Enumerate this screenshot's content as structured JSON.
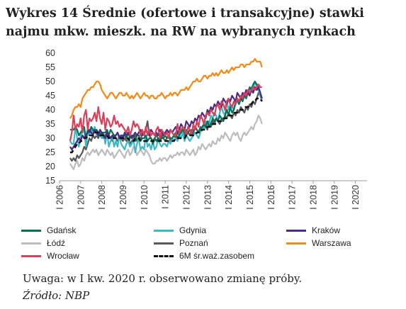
{
  "figure": {
    "title_line1": "Wykres 14 Średnie (ofertowe i transakcyjne) stawki",
    "title_line2": "najmu mkw. mieszk. na RW na wybranych rynkach",
    "note": "Uwaga: w I kw. 2020 r. obserwowano zmianę próby.",
    "source": "Źródło: NBP"
  },
  "chart_data": {
    "type": "line",
    "title": "Wykres 14 Średnie (ofertowe i transakcyjne) stawki najmu mkw. mieszk. na RW na wybranych rynkach",
    "xlabel": "",
    "ylabel": "",
    "ylim": [
      15,
      60
    ],
    "yticks": [
      15,
      20,
      25,
      30,
      35,
      40,
      45,
      50,
      55,
      60
    ],
    "x_tick_labels": [
      "I 2006",
      "I 2007",
      "I 2008",
      "I 2009",
      "I 2010",
      "I 2011",
      "I 2012",
      "I 2013",
      "I 2014",
      "I 2015",
      "I 2016",
      "I 2017",
      "I 2018",
      "I 2019",
      "I 2020"
    ],
    "x_start": 2006.5,
    "x_step": 0.0833,
    "grid": false,
    "legend_position": "bottom",
    "series": [
      {
        "name": "Gdańsk",
        "color": "#0a6e58",
        "dash": false,
        "values": [
          33,
          33,
          33,
          34,
          33,
          31,
          32,
          33,
          34,
          30,
          33,
          32,
          34,
          33,
          32,
          33,
          32,
          31,
          32,
          32,
          32,
          33,
          31,
          33,
          32,
          31,
          31,
          32,
          30,
          31,
          31,
          31,
          30,
          32,
          30,
          31,
          31,
          29,
          31,
          31,
          29,
          30,
          30,
          31,
          29,
          30,
          30,
          28,
          30,
          29,
          30,
          29,
          30,
          30,
          31,
          30,
          31,
          30,
          30,
          31,
          32,
          30,
          31,
          32,
          33,
          32,
          31,
          32,
          33,
          31,
          32,
          34,
          33,
          32,
          33,
          34,
          35,
          34,
          36,
          34,
          35,
          37,
          36,
          37,
          36,
          38,
          37,
          36,
          38,
          40,
          38,
          41,
          39,
          40,
          43,
          44,
          42,
          44,
          43,
          45,
          44,
          46,
          48,
          47,
          49,
          50,
          49,
          48,
          46,
          44
        ]
      },
      {
        "name": "Gdynia",
        "color": "#3fb8c6",
        "dash": false,
        "values": [
          29,
          28,
          28,
          34,
          30,
          27,
          31,
          32,
          33,
          27,
          32,
          31,
          33,
          32,
          34,
          31,
          32,
          31,
          30,
          32,
          28,
          32,
          27,
          29,
          31,
          27,
          29,
          27,
          31,
          28,
          27,
          26,
          28,
          29,
          27,
          28,
          30,
          25,
          28,
          30,
          26,
          27,
          26,
          31,
          27,
          28,
          26,
          29,
          26,
          27,
          30,
          28,
          27,
          28,
          28,
          27,
          29,
          28,
          30,
          29,
          30,
          29,
          31,
          30,
          32,
          29,
          31,
          30,
          29,
          30,
          31,
          32,
          31,
          30,
          32,
          34,
          33,
          36,
          34,
          35,
          38,
          37,
          39,
          38,
          36,
          39,
          41,
          39,
          38,
          43,
          40,
          42,
          41,
          40,
          42,
          43,
          42,
          44,
          43,
          46,
          45,
          47,
          46,
          48,
          47,
          50,
          48,
          47,
          45,
          43
        ]
      },
      {
        "name": "Kraków",
        "color": "#4b2c80",
        "dash": false,
        "values": [
          27,
          26,
          27,
          28,
          29,
          30,
          29,
          31,
          30,
          31,
          32,
          33,
          32,
          31,
          33,
          32,
          31,
          33,
          32,
          31,
          30,
          32,
          31,
          30,
          31,
          30,
          31,
          32,
          30,
          31,
          30,
          32,
          31,
          32,
          31,
          30,
          31,
          32,
          31,
          32,
          33,
          31,
          32,
          33,
          32,
          31,
          33,
          32,
          31,
          32,
          31,
          33,
          32,
          31,
          32,
          33,
          32,
          33,
          32,
          33,
          34,
          32,
          33,
          35,
          34,
          33,
          36,
          35,
          34,
          36,
          35,
          37,
          36,
          38,
          37,
          39,
          38,
          37,
          40,
          39,
          41,
          40,
          42,
          41,
          43,
          42,
          41,
          44,
          43,
          42,
          44,
          43,
          45,
          44,
          43,
          46,
          45,
          44,
          46,
          45,
          47,
          46,
          45,
          47,
          46,
          48,
          47,
          48,
          46,
          44
        ]
      },
      {
        "name": "Łódź",
        "color": "#bdbdbd",
        "dash": false,
        "values": [
          21,
          20,
          19,
          21,
          22,
          20,
          21,
          23,
          22,
          24,
          25,
          24,
          25,
          26,
          25,
          26,
          24,
          25,
          26,
          25,
          24,
          26,
          25,
          24,
          25,
          23,
          24,
          25,
          26,
          25,
          24,
          23,
          25,
          26,
          24,
          25,
          27,
          26,
          24,
          25,
          26,
          25,
          24,
          26,
          25,
          24,
          22,
          21,
          21,
          22,
          22,
          23,
          22,
          23,
          23,
          22,
          23,
          24,
          23,
          24,
          24,
          25,
          24,
          25,
          25,
          24,
          26,
          25,
          24,
          25,
          26,
          24,
          25,
          27,
          26,
          28,
          27,
          26,
          27,
          28,
          27,
          29,
          28,
          28,
          30,
          29,
          31,
          30,
          32,
          31,
          30,
          29,
          31,
          32,
          31,
          32,
          30,
          29,
          31,
          32,
          31,
          32,
          33,
          34,
          33,
          35,
          36,
          38,
          37,
          35
        ]
      },
      {
        "name": "Poznań",
        "color": "#595959",
        "dash": false,
        "values": [
          23,
          22,
          23,
          22,
          24,
          23,
          24,
          25,
          27,
          26,
          28,
          30,
          29,
          31,
          30,
          31,
          30,
          32,
          31,
          30,
          31,
          32,
          31,
          30,
          29,
          31,
          30,
          29,
          31,
          30,
          29,
          30,
          29,
          30,
          28,
          29,
          30,
          31,
          29,
          30,
          29,
          32,
          31,
          33,
          36,
          31,
          30,
          29,
          30,
          31,
          30,
          29,
          31,
          30,
          29,
          30,
          31,
          29,
          30,
          31,
          30,
          32,
          31,
          30,
          32,
          31,
          33,
          32,
          31,
          33,
          32,
          34,
          33,
          32,
          34,
          33,
          35,
          34,
          33,
          36,
          34,
          36,
          35,
          37,
          36,
          35,
          37,
          36,
          38,
          37,
          39,
          38,
          37,
          39,
          38,
          40,
          39,
          41,
          40,
          39,
          41,
          40,
          42,
          41,
          43,
          42,
          44,
          46,
          45,
          43
        ]
      },
      {
        "name": "Warszawa",
        "color": "#f08c1a",
        "dash": false,
        "values": [
          37,
          38,
          40,
          41,
          41,
          42,
          41,
          44,
          45,
          46,
          47,
          47,
          48,
          48,
          49,
          50,
          50,
          49,
          47,
          46,
          45,
          44,
          45,
          46,
          46,
          45,
          44,
          45,
          46,
          46,
          45,
          45,
          46,
          45,
          44,
          45,
          44,
          45,
          46,
          45,
          44,
          45,
          46,
          45,
          45,
          44,
          45,
          45,
          44,
          44,
          45,
          45,
          46,
          45,
          44,
          45,
          45,
          46,
          45,
          46,
          46,
          45,
          46,
          47,
          47,
          47,
          48,
          47,
          48,
          49,
          50,
          50,
          51,
          50,
          50,
          51,
          52,
          52,
          51,
          52,
          52,
          53,
          52,
          53,
          52,
          53,
          54,
          53,
          53,
          54,
          53,
          54,
          55,
          54,
          55,
          55,
          55,
          56,
          56,
          55,
          56,
          56,
          56,
          57,
          57,
          58,
          57,
          57,
          57,
          55
        ]
      },
      {
        "name": "Wrocław",
        "color": "#d9405a",
        "dash": false,
        "values": [
          29,
          32,
          38,
          33,
          35,
          34,
          37,
          32,
          38,
          40,
          33,
          37,
          36,
          37,
          39,
          36,
          41,
          37,
          35,
          39,
          33,
          37,
          36,
          34,
          35,
          38,
          35,
          36,
          34,
          35,
          34,
          33,
          32,
          34,
          31,
          33,
          36,
          34,
          35,
          34,
          31,
          33,
          31,
          34,
          31,
          33,
          31,
          32,
          31,
          33,
          34,
          30,
          33,
          32,
          31,
          32,
          30,
          33,
          32,
          31,
          31,
          35,
          32,
          33,
          34,
          33,
          31,
          34,
          33,
          31,
          35,
          33,
          36,
          34,
          38,
          37,
          35,
          38,
          39,
          38,
          40,
          39,
          38,
          41,
          42,
          40,
          43,
          42,
          40,
          43,
          44,
          42,
          41,
          43,
          42,
          44,
          43,
          45,
          44,
          46,
          45,
          47,
          46,
          47,
          48,
          47,
          48,
          49,
          48,
          48
        ]
      },
      {
        "name": "6M śr.waż.zasobem",
        "color": "#111111",
        "dash": true,
        "values": [
          25,
          25,
          26,
          27,
          28,
          28,
          29,
          29,
          30,
          30,
          31,
          31,
          31,
          31,
          32,
          32,
          32,
          31,
          31,
          31,
          31,
          31,
          30,
          30,
          30,
          30,
          30,
          30,
          30,
          30,
          30,
          30,
          30,
          30,
          29,
          29,
          29,
          30,
          30,
          30,
          29,
          29,
          29,
          29,
          29,
          29,
          29,
          29,
          29,
          29,
          29,
          29,
          29,
          29,
          29,
          29,
          29,
          29,
          29,
          29,
          30,
          30,
          30,
          30,
          30,
          30,
          31,
          31,
          31,
          31,
          31,
          31,
          32,
          32,
          32,
          33,
          33,
          33,
          34,
          34,
          34,
          35,
          35,
          35,
          36,
          36,
          36,
          37,
          37,
          37,
          38,
          38,
          38,
          39,
          39,
          39,
          40,
          40,
          40,
          41,
          41,
          41,
          42,
          42,
          43,
          43,
          44,
          44,
          44,
          43
        ]
      }
    ]
  }
}
